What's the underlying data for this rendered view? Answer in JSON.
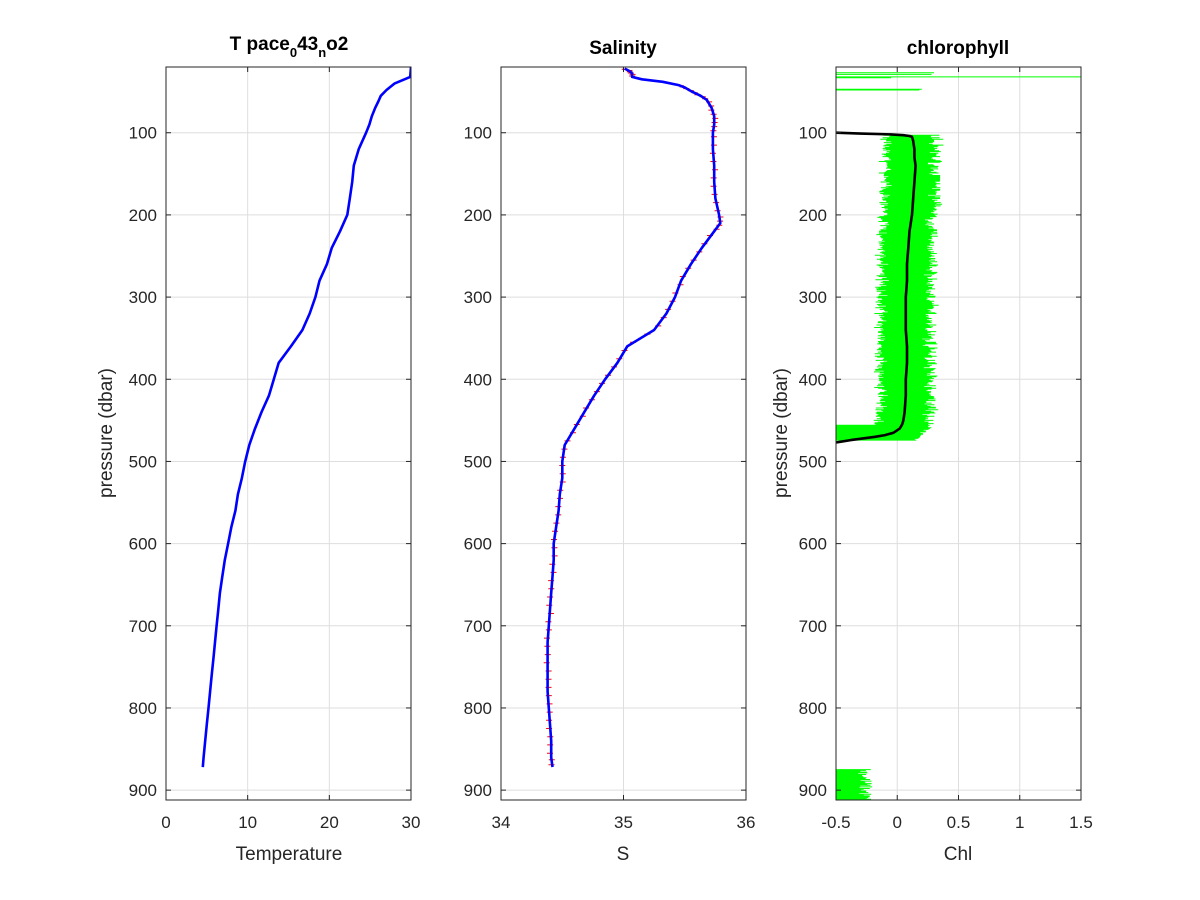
{
  "chart_data": [
    {
      "type": "line",
      "title": {
        "main": "T pace",
        "sub1": "0",
        "mid": "43",
        "sub2": "n",
        "end": "o2"
      },
      "xlabel": "Temperature",
      "ylabel": "pressure (dbar)",
      "xlim": [
        0,
        30
      ],
      "ylim": [
        20,
        912
      ],
      "y_reversed": true,
      "x_ticks": [
        "0",
        "10",
        "20",
        "30"
      ],
      "y_ticks": [
        "100",
        "200",
        "300",
        "400",
        "500",
        "600",
        "700",
        "800",
        "900"
      ],
      "grid": true,
      "series": [
        {
          "color": "#0000ff",
          "y": [
            20,
            32,
            40,
            48,
            55,
            62,
            70,
            80,
            90,
            100,
            120,
            140,
            160,
            180,
            200,
            220,
            240,
            260,
            280,
            300,
            320,
            340,
            360,
            380,
            400,
            420,
            440,
            460,
            480,
            500,
            520,
            540,
            560,
            580,
            600,
            620,
            640,
            660,
            680,
            700,
            720,
            740,
            760,
            780,
            800,
            820,
            840,
            860,
            872
          ],
          "x": [
            30.0,
            29.9,
            28.0,
            27.0,
            26.3,
            26.0,
            25.6,
            25.2,
            24.9,
            24.5,
            23.6,
            23.0,
            22.8,
            22.5,
            22.2,
            21.3,
            20.3,
            19.7,
            18.8,
            18.3,
            17.6,
            16.7,
            15.3,
            13.8,
            13.2,
            12.6,
            11.7,
            10.9,
            10.2,
            9.7,
            9.3,
            8.8,
            8.5,
            8.0,
            7.6,
            7.2,
            6.9,
            6.6,
            6.4,
            6.2,
            6.0,
            5.8,
            5.6,
            5.4,
            5.2,
            5.0,
            4.8,
            4.6,
            4.5
          ]
        }
      ]
    },
    {
      "type": "line",
      "title": "Salinity",
      "xlabel": "S",
      "xlim": [
        34,
        36
      ],
      "ylim": [
        20,
        912
      ],
      "y_reversed": true,
      "x_ticks": [
        "34",
        "35",
        "36"
      ],
      "y_ticks": [
        "100",
        "200",
        "300",
        "400",
        "500",
        "600",
        "700",
        "800",
        "900"
      ],
      "grid": true,
      "series": [
        {
          "color": "#0000ff",
          "y": [
            22,
            25,
            28,
            32,
            35,
            38,
            42,
            45,
            50,
            55,
            60,
            70,
            80,
            90,
            100,
            120,
            140,
            160,
            180,
            200,
            210,
            220,
            240,
            260,
            280,
            300,
            320,
            340,
            360,
            380,
            400,
            420,
            440,
            460,
            480,
            500,
            520,
            540,
            560,
            580,
            600,
            620,
            640,
            660,
            680,
            700,
            720,
            740,
            760,
            780,
            800,
            820,
            840,
            860,
            872
          ],
          "x": [
            35.01,
            35.05,
            35.07,
            35.07,
            35.15,
            35.32,
            35.45,
            35.5,
            35.56,
            35.63,
            35.68,
            35.72,
            35.74,
            35.74,
            35.73,
            35.73,
            35.74,
            35.74,
            35.75,
            35.78,
            35.79,
            35.74,
            35.64,
            35.55,
            35.47,
            35.42,
            35.35,
            35.25,
            35.03,
            34.95,
            34.85,
            34.76,
            34.68,
            34.6,
            34.52,
            34.5,
            34.5,
            34.48,
            34.47,
            34.45,
            34.43,
            34.43,
            34.42,
            34.41,
            34.4,
            34.39,
            34.38,
            34.38,
            34.38,
            34.38,
            34.39,
            34.4,
            34.41,
            34.41,
            34.42
          ]
        }
      ]
    },
    {
      "type": "line",
      "title": "chlorophyll",
      "xlabel": "Chl",
      "ylabel": "pressure (dbar)",
      "xlim": [
        -0.5,
        1.5
      ],
      "ylim": [
        20,
        912
      ],
      "y_reversed": true,
      "x_ticks": [
        "-0.5",
        "0",
        "0.5",
        "1",
        "1.5"
      ],
      "y_ticks": [
        "100",
        "200",
        "300",
        "400",
        "500",
        "600",
        "700",
        "800",
        "900"
      ],
      "grid": true,
      "series": [
        {
          "color": "#000000",
          "y": [
            100,
            101,
            102,
            103,
            104,
            105,
            110,
            120,
            130,
            140,
            160,
            180,
            200,
            220,
            240,
            260,
            280,
            300,
            320,
            340,
            360,
            380,
            400,
            420,
            440,
            450,
            455,
            460,
            465,
            468,
            470,
            472,
            474,
            476,
            477
          ],
          "x": [
            -0.5,
            -0.3,
            -0.05,
            0.05,
            0.1,
            0.12,
            0.13,
            0.14,
            0.14,
            0.15,
            0.14,
            0.13,
            0.12,
            0.1,
            0.09,
            0.08,
            0.08,
            0.07,
            0.07,
            0.07,
            0.08,
            0.08,
            0.07,
            0.07,
            0.06,
            0.05,
            0.04,
            0.02,
            -0.03,
            -0.1,
            -0.18,
            -0.28,
            -0.38,
            -0.46,
            -0.5
          ]
        }
      ]
    }
  ]
}
